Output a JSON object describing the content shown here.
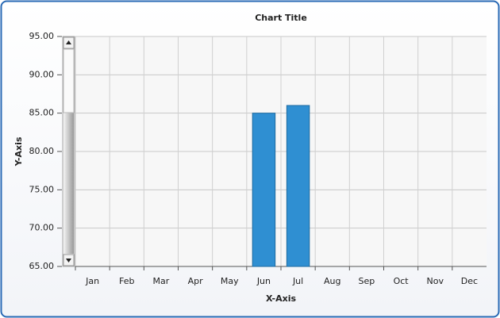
{
  "chart_data": {
    "type": "bar",
    "title": "Chart Title",
    "x_label": "X-Axis",
    "y_label": "Y-Axis",
    "categories": [
      "Jan",
      "Feb",
      "Mar",
      "Apr",
      "May",
      "Jun",
      "Jul",
      "Aug",
      "Sep",
      "Oct",
      "Nov",
      "Dec"
    ],
    "values": [
      null,
      null,
      null,
      null,
      null,
      85,
      86,
      null,
      null,
      null,
      null,
      null
    ],
    "color": "#2f8fd2",
    "ylim": [
      65,
      95
    ],
    "yticks": [
      {
        "value": 65,
        "label": "65.00"
      },
      {
        "value": 70,
        "label": "70.00"
      },
      {
        "value": 75,
        "label": "75.00"
      },
      {
        "value": 80,
        "label": "80.00"
      },
      {
        "value": 85,
        "label": "85.00"
      },
      {
        "value": 90,
        "label": "90.00"
      },
      {
        "value": 95,
        "label": "95.00"
      }
    ],
    "grid": true
  }
}
